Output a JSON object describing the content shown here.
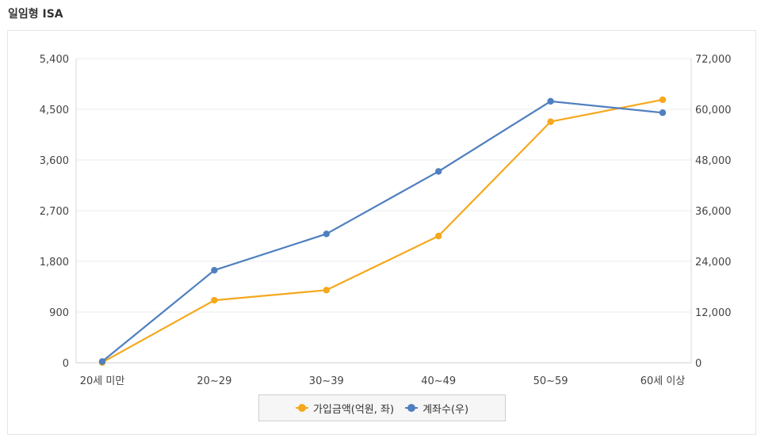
{
  "page": {
    "title": "일임형 ISA"
  },
  "chart_data": {
    "type": "line",
    "title": "",
    "categories": [
      "20세 미만",
      "20~29",
      "30~39",
      "40~49",
      "50~59",
      "60세 이상"
    ],
    "y_left": {
      "ticks": [
        "0",
        "900",
        "1,800",
        "2,700",
        "3,600",
        "4,500",
        "5,400"
      ],
      "min": 0,
      "max": 5400
    },
    "y_right": {
      "ticks": [
        "0",
        "12,000",
        "24,000",
        "36,000",
        "48,000",
        "60,000",
        "72,000"
      ],
      "min": 0,
      "max": 72000
    },
    "series": [
      {
        "name": "가입금액(억원, 좌)",
        "axis": "left",
        "color": "#f5a81c",
        "values": [
          5,
          1110,
          1290,
          2250,
          4280,
          4670
        ]
      },
      {
        "name": "계좌수(우)",
        "axis": "right",
        "color": "#4f7fbf",
        "values": [
          300,
          21900,
          30500,
          45300,
          61900,
          59200
        ]
      }
    ],
    "grid": true,
    "legend": "bottom-center"
  }
}
